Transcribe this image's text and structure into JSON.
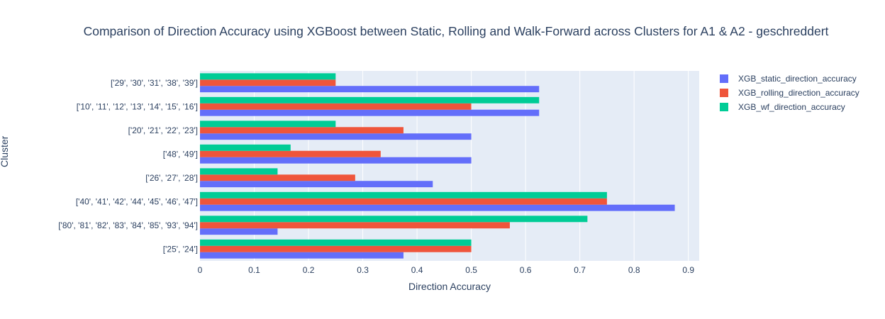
{
  "chart_data": {
    "type": "bar",
    "orientation": "horizontal",
    "title": "Comparison of Direction Accuracy using XGBoost between Static, Rolling and Walk-Forward across Clusters for A1 & A2 -  geschreddert",
    "xlabel": "Direction Accuracy",
    "ylabel": "Cluster",
    "xlim": [
      0,
      0.92
    ],
    "xticks": [
      0,
      0.1,
      0.2,
      0.3,
      0.4,
      0.5,
      0.6,
      0.7,
      0.8,
      0.9
    ],
    "xtick_labels": [
      "0",
      "0.1",
      "0.2",
      "0.3",
      "0.4",
      "0.5",
      "0.6",
      "0.7",
      "0.8",
      "0.9"
    ],
    "grid": true,
    "legend_position": "top-right",
    "categories": [
      "['25', '24']",
      "['80', '81', '82', '83', '84', '85', '93', '94']",
      "['40', '41', '42', '44', '45', '46', '47']",
      "['26', '27', '28']",
      "['48', '49']",
      "['20', '21', '22', '23']",
      "['10', '11', '12', '13', '14', '15', '16']",
      "['29', '30', '31', '38', '39']"
    ],
    "series": [
      {
        "name": "XGB_static_direction_accuracy",
        "color": "#636efa",
        "values": [
          0.375,
          0.143,
          0.875,
          0.429,
          0.5,
          0.5,
          0.625,
          0.625
        ]
      },
      {
        "name": "XGB_rolling_direction_accuracy",
        "color": "#ef553b",
        "values": [
          0.5,
          0.571,
          0.75,
          0.286,
          0.333,
          0.375,
          0.5,
          0.25
        ]
      },
      {
        "name": "XGB_wf_direction_accuracy",
        "color": "#00cc96",
        "values": [
          0.5,
          0.714,
          0.75,
          0.143,
          0.167,
          0.25,
          0.625,
          0.25
        ]
      }
    ],
    "plot_background": "#e5ecf6",
    "grid_color": "#ffffff",
    "text_color": "#2a3f5f"
  }
}
